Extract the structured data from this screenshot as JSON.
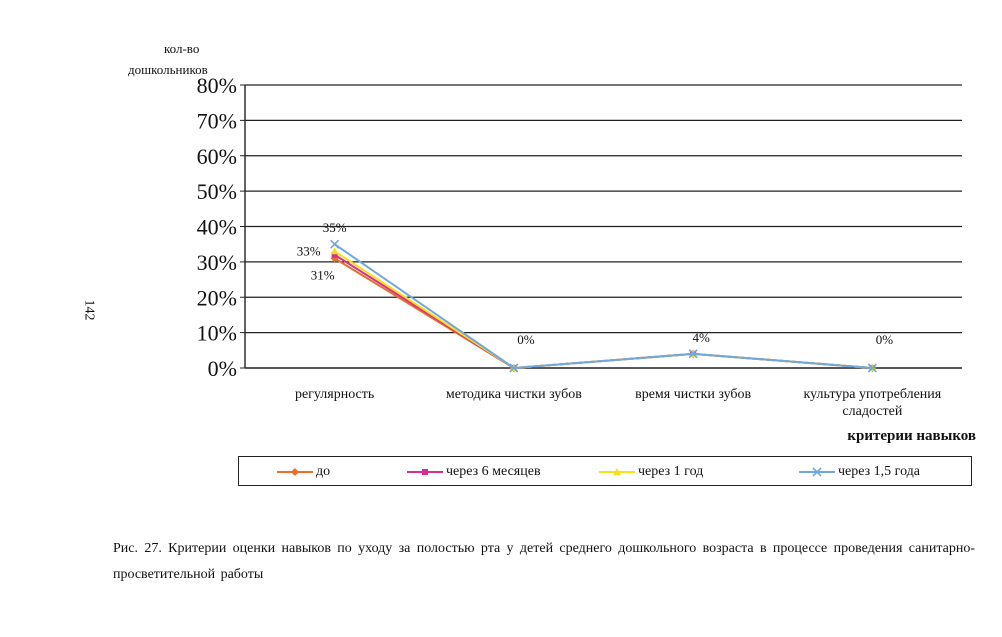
{
  "page_number": "142",
  "y_axis_title": [
    "кол-во",
    "дошкольников"
  ],
  "x_axis_title": "критерии навыков",
  "caption": "Рис. 27. Критерии оценки навыков по уходу за полостью рта у детей среднего дошкольного возраста в процессе проведения санитарно-просветительной работы",
  "chart_data": {
    "type": "line",
    "title": "",
    "xlabel": "критерии навыков",
    "ylabel": "кол-во дошкольников",
    "ylim": [
      0,
      80
    ],
    "yticks": [
      "0%",
      "10%",
      "20%",
      "30%",
      "40%",
      "50%",
      "60%",
      "70%",
      "80%"
    ],
    "grid": true,
    "legend_position": "bottom",
    "categories": [
      [
        "регулярность"
      ],
      [
        "методика чистки зубов"
      ],
      [
        "время чистки зубов"
      ],
      [
        "культура употребления",
        "сладостей"
      ]
    ],
    "series": [
      {
        "name": "до",
        "values": [
          31,
          0,
          4,
          0
        ],
        "color": "#e8702a",
        "marker": "diamond"
      },
      {
        "name": "через 6 месяцев",
        "values": [
          32,
          0,
          4,
          0
        ],
        "color": "#d62f8f",
        "marker": "square"
      },
      {
        "name": "через 1 год",
        "values": [
          33,
          0,
          4,
          0
        ],
        "color": "#f3e21b",
        "marker": "triangle"
      },
      {
        "name": "через 1,5 года",
        "values": [
          35,
          0,
          4,
          0
        ],
        "color": "#6fa8dc",
        "marker": "x"
      }
    ],
    "data_labels": [
      {
        "category": 0,
        "value": 35,
        "text": "35%"
      },
      {
        "category": 0,
        "value": 33,
        "text": "33%"
      },
      {
        "category": 0,
        "value": 31,
        "text": "31%"
      },
      {
        "category": 1,
        "value": 0,
        "text": "0%"
      },
      {
        "category": 2,
        "value": 4,
        "text": "4%"
      },
      {
        "category": 3,
        "value": 0,
        "text": "0%"
      }
    ]
  }
}
